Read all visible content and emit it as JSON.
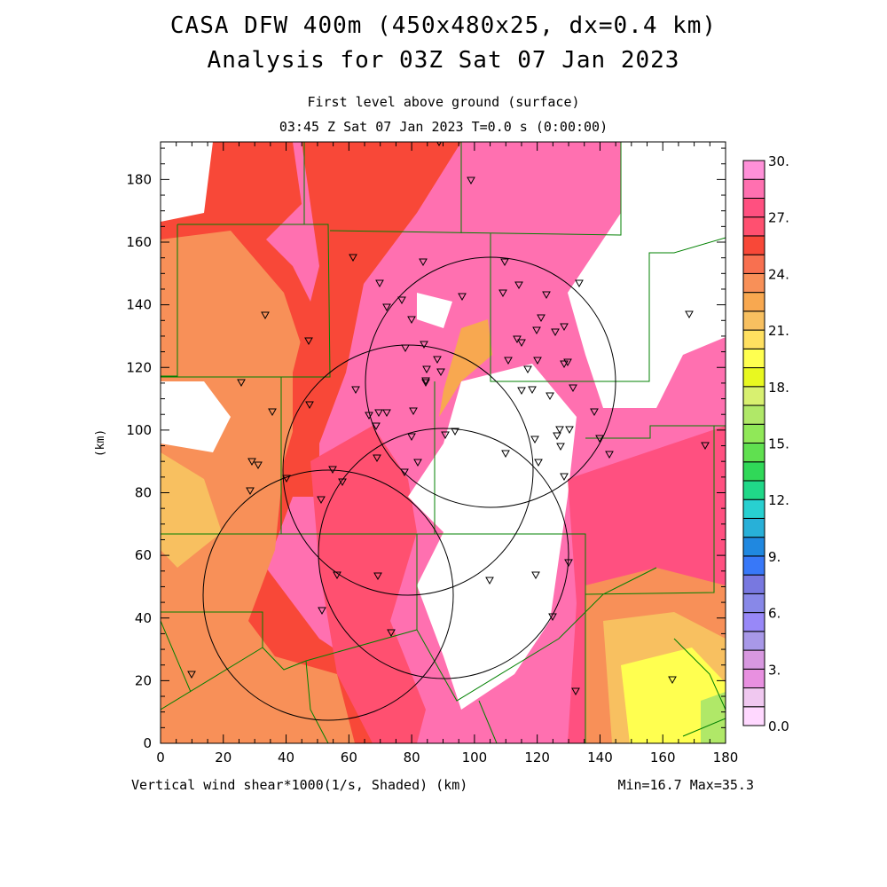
{
  "header": {
    "title_line1": "CASA DFW 400m (450x480x25, dx=0.4 km)",
    "title_line2": "Analysis for 03Z Sat 07 Jan 2023",
    "subtitle_line1": "First level above ground (surface)",
    "subtitle_line2": "03:45 Z Sat 07 Jan 2023   T=0.0 s (0:00:00)"
  },
  "footer": {
    "field_label": "Vertical wind shear*1000(1/s, Shaded)  (km)",
    "minmax": "Min=16.7 Max=35.3"
  },
  "chart_data": {
    "type": "heatmap",
    "title": "CASA DFW 400m (450x480x25, dx=0.4 km)",
    "xlabel": "(km)",
    "ylabel": "(km)",
    "xlim": [
      0,
      180
    ],
    "ylim": [
      0,
      192
    ],
    "xticks": [
      "0",
      "20",
      "40",
      "60",
      "80",
      "100",
      "120",
      "140",
      "160",
      "180"
    ],
    "yticks": [
      "0",
      "20",
      "40",
      "60",
      "80",
      "100",
      "120",
      "140",
      "160",
      "180"
    ],
    "colorbar": {
      "range": [
        0,
        30
      ],
      "labels": [
        "0.0",
        "3.",
        "6.",
        "9.",
        "12.",
        "15.",
        "18.",
        "21.",
        "24.",
        "27.",
        "30."
      ],
      "colors": [
        "#ffd8ff",
        "#f0c8f0",
        "#e890e0",
        "#d898e0",
        "#a898e8",
        "#9888f8",
        "#8888e8",
        "#7878e0",
        "#3878f8",
        "#2088e0",
        "#28b0d8",
        "#28d0d0",
        "#20d888",
        "#30d858",
        "#60e050",
        "#90e858",
        "#b0e868",
        "#d8f070",
        "#e8f820",
        "#ffff50",
        "#ffe060",
        "#f8c060",
        "#f8a850",
        "#f89058",
        "#f87050",
        "#f84838",
        "#ff5070",
        "#ff5080",
        "#ff70b0",
        "#ff90d8"
      ]
    },
    "min": 16.7,
    "max": 35.3,
    "radar_range_rings_km": [
      {
        "center": [
          104,
          115
        ],
        "radius": 40
      },
      {
        "center": [
          79,
          87
        ],
        "radius": 40
      },
      {
        "center": [
          90,
          61
        ],
        "radius": 40
      },
      {
        "center": [
          53,
          47
        ],
        "radius": 40
      }
    ]
  }
}
